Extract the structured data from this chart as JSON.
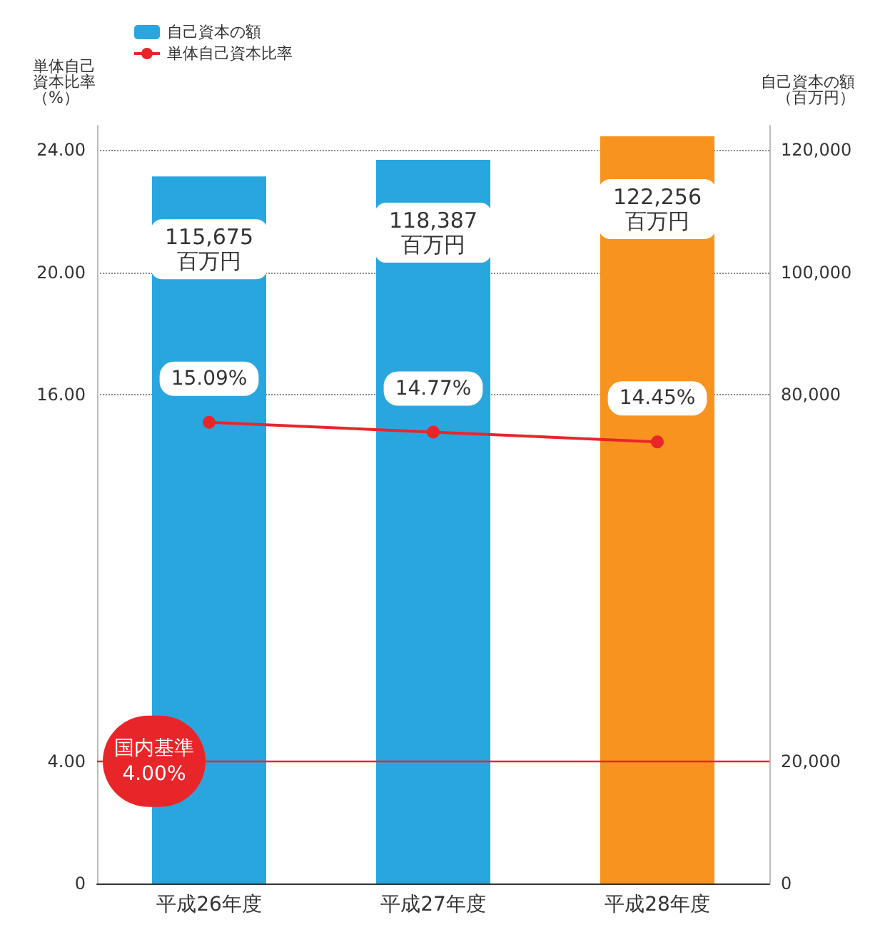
{
  "chart_data": {
    "type": "bar",
    "categories": [
      "平成26年度",
      "平成27年度",
      "平成28年度"
    ],
    "ylabel": "単体自己資本比率（%）",
    "y2label": "自己資本の額（百万円）",
    "series": [
      {
        "name": "自己資本の額",
        "axis": "y2",
        "color": "#2aa6de",
        "colors": [
          "#2aa6de",
          "#2aa6de",
          "#f7931e"
        ],
        "values": [
          115675,
          118387,
          122256
        ],
        "value_labels": [
          "115,675\n百万円",
          "118,387\n百万円",
          "122,256\n百万円"
        ]
      },
      {
        "name": "単体自己資本比率",
        "type": "line",
        "color": "#e8262a",
        "marker": "circle",
        "values": [
          15.09,
          14.77,
          14.45
        ],
        "value_labels": [
          "15.09%",
          "14.77%",
          "14.45%"
        ]
      }
    ],
    "ylim": [
      0,
      24.8
    ],
    "yticks": [
      0,
      {
        "value": 4,
        "label": "4.00"
      },
      {
        "value": 16,
        "label": "16.00"
      },
      {
        "value": 20,
        "label": "20.00"
      },
      {
        "value": 24,
        "label": "24.00"
      }
    ],
    "y2lim": [
      0,
      124000
    ],
    "y2ticks": [
      0,
      {
        "value": 20000,
        "label": "20,000"
      },
      {
        "value": 80000,
        "label": "80,000"
      },
      {
        "value": 100000,
        "label": "100,000"
      },
      {
        "value": 120000,
        "label": "120,000"
      }
    ],
    "ref_lines": [
      {
        "axis": "y",
        "value": 4,
        "label": "国内基準\n4.00%",
        "color": "#e8262a"
      }
    ],
    "grid": "y",
    "legend": "top left"
  }
}
